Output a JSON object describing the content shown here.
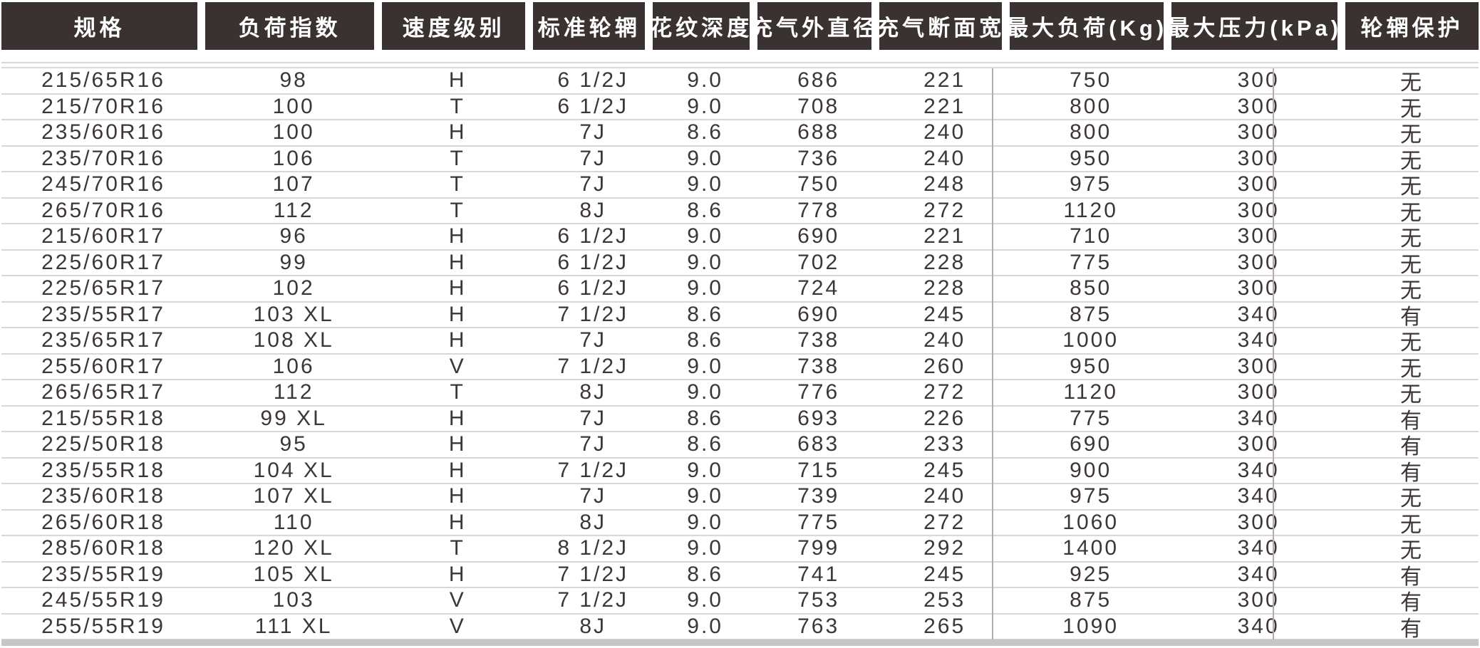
{
  "table": {
    "columns": [
      {
        "key": "spec",
        "label": "规格"
      },
      {
        "key": "load-index",
        "label": "负荷指数"
      },
      {
        "key": "speed-rating",
        "label": "速度级别"
      },
      {
        "key": "standard-rim",
        "label": "标准轮辋"
      },
      {
        "key": "tread-depth",
        "label": "花纹深度"
      },
      {
        "key": "inflated-outer-diameter",
        "label": "充气外直径"
      },
      {
        "key": "inflated-section-width",
        "label": "充气断面宽"
      },
      {
        "key": "max-load-kg",
        "label": "最大负荷(Kg)"
      },
      {
        "key": "max-pressure-kpa",
        "label": "最大压力(kPa)"
      },
      {
        "key": "rim-protection",
        "label": "轮辋保护"
      }
    ],
    "rows": [
      [
        "215/65R16",
        "98",
        "H",
        "6 1/2J",
        "9.0",
        "686",
        "221",
        "750",
        "300",
        "无"
      ],
      [
        "215/70R16",
        "100",
        "T",
        "6 1/2J",
        "9.0",
        "708",
        "221",
        "800",
        "300",
        "无"
      ],
      [
        "235/60R16",
        "100",
        "H",
        "7J",
        "8.6",
        "688",
        "240",
        "800",
        "300",
        "无"
      ],
      [
        "235/70R16",
        "106",
        "T",
        "7J",
        "9.0",
        "736",
        "240",
        "950",
        "300",
        "无"
      ],
      [
        "245/70R16",
        "107",
        "T",
        "7J",
        "9.0",
        "750",
        "248",
        "975",
        "300",
        "无"
      ],
      [
        "265/70R16",
        "112",
        "T",
        "8J",
        "8.6",
        "778",
        "272",
        "1120",
        "300",
        "无"
      ],
      [
        "215/60R17",
        "96",
        "H",
        "6 1/2J",
        "9.0",
        "690",
        "221",
        "710",
        "300",
        "无"
      ],
      [
        "225/60R17",
        "99",
        "H",
        "6 1/2J",
        "9.0",
        "702",
        "228",
        "775",
        "300",
        "无"
      ],
      [
        "225/65R17",
        "102",
        "H",
        "6 1/2J",
        "9.0",
        "724",
        "228",
        "850",
        "300",
        "无"
      ],
      [
        "235/55R17",
        "103 XL",
        "H",
        "7 1/2J",
        "8.6",
        "690",
        "245",
        "875",
        "340",
        "有"
      ],
      [
        "235/65R17",
        "108 XL",
        "H",
        "7J",
        "8.6",
        "738",
        "240",
        "1000",
        "340",
        "无"
      ],
      [
        "255/60R17",
        "106",
        "V",
        "7 1/2J",
        "9.0",
        "738",
        "260",
        "950",
        "300",
        "无"
      ],
      [
        "265/65R17",
        "112",
        "T",
        "8J",
        "9.0",
        "776",
        "272",
        "1120",
        "300",
        "无"
      ],
      [
        "215/55R18",
        "99 XL",
        "H",
        "7J",
        "8.6",
        "693",
        "226",
        "775",
        "340",
        "有"
      ],
      [
        "225/50R18",
        "95",
        "H",
        "7J",
        "8.6",
        "683",
        "233",
        "690",
        "300",
        "有"
      ],
      [
        "235/55R18",
        "104 XL",
        "H",
        "7 1/2J",
        "9.0",
        "715",
        "245",
        "900",
        "340",
        "有"
      ],
      [
        "235/60R18",
        "107 XL",
        "H",
        "7J",
        "9.0",
        "739",
        "240",
        "975",
        "340",
        "无"
      ],
      [
        "265/60R18",
        "110",
        "H",
        "8J",
        "9.0",
        "775",
        "272",
        "1060",
        "300",
        "无"
      ],
      [
        "285/60R18",
        "120 XL",
        "T",
        "8 1/2J",
        "9.0",
        "799",
        "292",
        "1400",
        "340",
        "无"
      ],
      [
        "235/55R19",
        "105 XL",
        "H",
        "7 1/2J",
        "8.6",
        "741",
        "245",
        "925",
        "340",
        "有"
      ],
      [
        "245/55R19",
        "103",
        "V",
        "7 1/2J",
        "9.0",
        "753",
        "253",
        "875",
        "300",
        "有"
      ],
      [
        "255/55R19",
        "111 XL",
        "V",
        "8J",
        "9.0",
        "763",
        "265",
        "1090",
        "340",
        "有"
      ]
    ]
  },
  "colors": {
    "background": "#ffffff",
    "header_bg": "#3a3231",
    "header_text": "#ffffff",
    "body_text": "#3d3637",
    "row_line": "#dad8d7",
    "divider_line": "#b3acaa",
    "bottom_bar": "#c7c6c5"
  }
}
